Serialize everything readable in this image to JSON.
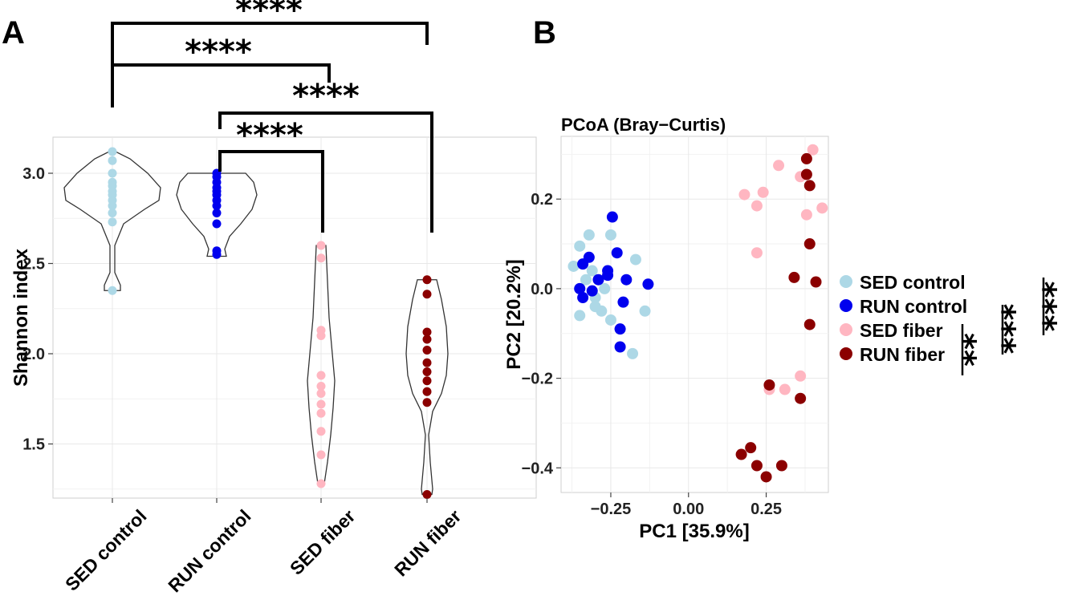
{
  "panels": {
    "a_letter": "A",
    "b_letter": "B"
  },
  "colors": {
    "SED control": "#add8e6",
    "RUN control": "#0000ee",
    "SED fiber": "#ffb6c1",
    "RUN fiber": "#8b0000"
  },
  "chart_data": [
    {
      "type": "violin",
      "ylabel": "Shannon index",
      "ylim": [
        1.2,
        3.2
      ],
      "y_ticks": [
        "1.5",
        "2.0",
        "2.5",
        "3.0"
      ],
      "y_tick_values": [
        1.5,
        2.0,
        2.5,
        3.0
      ],
      "categories": [
        "SED control",
        "RUN control",
        "SED fiber",
        "RUN fiber"
      ],
      "grid": true,
      "series": [
        {
          "category": "SED control",
          "values": [
            3.12,
            3.07,
            3.0,
            2.95,
            2.93,
            2.9,
            2.88,
            2.85,
            2.82,
            2.78,
            2.73,
            2.35
          ]
        },
        {
          "category": "RUN control",
          "values": [
            3.0,
            2.98,
            2.95,
            2.92,
            2.9,
            2.88,
            2.85,
            2.82,
            2.78,
            2.72,
            2.57,
            2.55
          ]
        },
        {
          "category": "SED fiber",
          "values": [
            2.6,
            2.53,
            2.13,
            2.1,
            1.88,
            1.82,
            1.78,
            1.72,
            1.67,
            1.57,
            1.44,
            1.28
          ]
        },
        {
          "category": "RUN fiber",
          "values": [
            2.41,
            2.33,
            2.12,
            2.08,
            2.02,
            1.95,
            1.9,
            1.85,
            1.79,
            1.73,
            1.22
          ]
        }
      ],
      "significance": [
        {
          "from": "SED control",
          "to": "RUN fiber",
          "label": "****"
        },
        {
          "from": "SED control",
          "to": "SED fiber",
          "label": "****"
        },
        {
          "from": "RUN control",
          "to": "RUN fiber",
          "label": "****"
        },
        {
          "from": "RUN control",
          "to": "SED fiber",
          "label": "****"
        }
      ]
    },
    {
      "type": "scatter",
      "title": "PCoA (Bray−Curtis)",
      "xlabel": "PC1 [35.9%]",
      "ylabel": "PC2 [20.2%]",
      "xlim": [
        -0.41,
        0.45
      ],
      "ylim": [
        -0.455,
        0.34
      ],
      "x_ticks": [
        "−0.25",
        "0.00",
        "0.25"
      ],
      "x_tick_values": [
        -0.25,
        0.0,
        0.25
      ],
      "y_ticks": [
        "−0.4",
        "−0.2",
        "0.0",
        "0.2"
      ],
      "y_tick_values": [
        -0.4,
        -0.2,
        0.0,
        0.2
      ],
      "grid": true,
      "legend_position": "right",
      "series": [
        {
          "name": "SED control",
          "points": [
            [
              -0.35,
              0.095
            ],
            [
              -0.32,
              0.12
            ],
            [
              -0.25,
              0.12
            ],
            [
              -0.37,
              0.05
            ],
            [
              -0.33,
              0.02
            ],
            [
              -0.31,
              0.04
            ],
            [
              -0.35,
              0.0
            ],
            [
              -0.3,
              -0.02
            ],
            [
              -0.28,
              -0.05
            ],
            [
              -0.3,
              -0.04
            ],
            [
              -0.35,
              -0.06
            ],
            [
              -0.25,
              -0.07
            ],
            [
              -0.17,
              0.065
            ],
            [
              -0.14,
              -0.05
            ],
            [
              -0.18,
              -0.145
            ],
            [
              -0.27,
              0.0
            ]
          ]
        },
        {
          "name": "RUN control",
          "points": [
            [
              -0.245,
              0.16
            ],
            [
              -0.32,
              0.07
            ],
            [
              -0.34,
              0.055
            ],
            [
              -0.23,
              0.08
            ],
            [
              -0.26,
              0.04
            ],
            [
              -0.29,
              0.02
            ],
            [
              -0.2,
              0.02
            ],
            [
              -0.26,
              0.03
            ],
            [
              -0.35,
              0.0
            ],
            [
              -0.31,
              -0.005
            ],
            [
              -0.34,
              -0.02
            ],
            [
              -0.13,
              0.01
            ],
            [
              -0.21,
              -0.03
            ],
            [
              -0.22,
              -0.09
            ],
            [
              -0.22,
              -0.13
            ]
          ]
        },
        {
          "name": "SED fiber",
          "points": [
            [
              0.4,
              0.31
            ],
            [
              0.29,
              0.275
            ],
            [
              0.36,
              0.25
            ],
            [
              0.24,
              0.215
            ],
            [
              0.18,
              0.21
            ],
            [
              0.22,
              0.185
            ],
            [
              0.43,
              0.18
            ],
            [
              0.38,
              0.165
            ],
            [
              0.22,
              0.08
            ],
            [
              0.36,
              -0.195
            ],
            [
              0.31,
              -0.225
            ],
            [
              0.26,
              -0.225
            ]
          ]
        },
        {
          "name": "RUN fiber",
          "points": [
            [
              0.38,
              0.29
            ],
            [
              0.38,
              0.255
            ],
            [
              0.39,
              0.23
            ],
            [
              0.39,
              0.1
            ],
            [
              0.34,
              0.025
            ],
            [
              0.41,
              0.015
            ],
            [
              0.39,
              -0.08
            ],
            [
              0.26,
              -0.215
            ],
            [
              0.36,
              -0.245
            ],
            [
              0.2,
              -0.355
            ],
            [
              0.17,
              -0.37
            ],
            [
              0.22,
              -0.395
            ],
            [
              0.3,
              -0.395
            ],
            [
              0.25,
              -0.42
            ]
          ]
        }
      ],
      "legend": [
        "SED control",
        "RUN control",
        "SED fiber",
        "RUN fiber"
      ],
      "significance": [
        {
          "between": [
            "SED fiber",
            "RUN fiber"
          ],
          "label": "**"
        },
        {
          "between": [
            "RUN control",
            "RUN fiber"
          ],
          "label": "***"
        },
        {
          "between": [
            "SED control",
            "RUN fiber"
          ],
          "label": "***"
        }
      ]
    }
  ]
}
